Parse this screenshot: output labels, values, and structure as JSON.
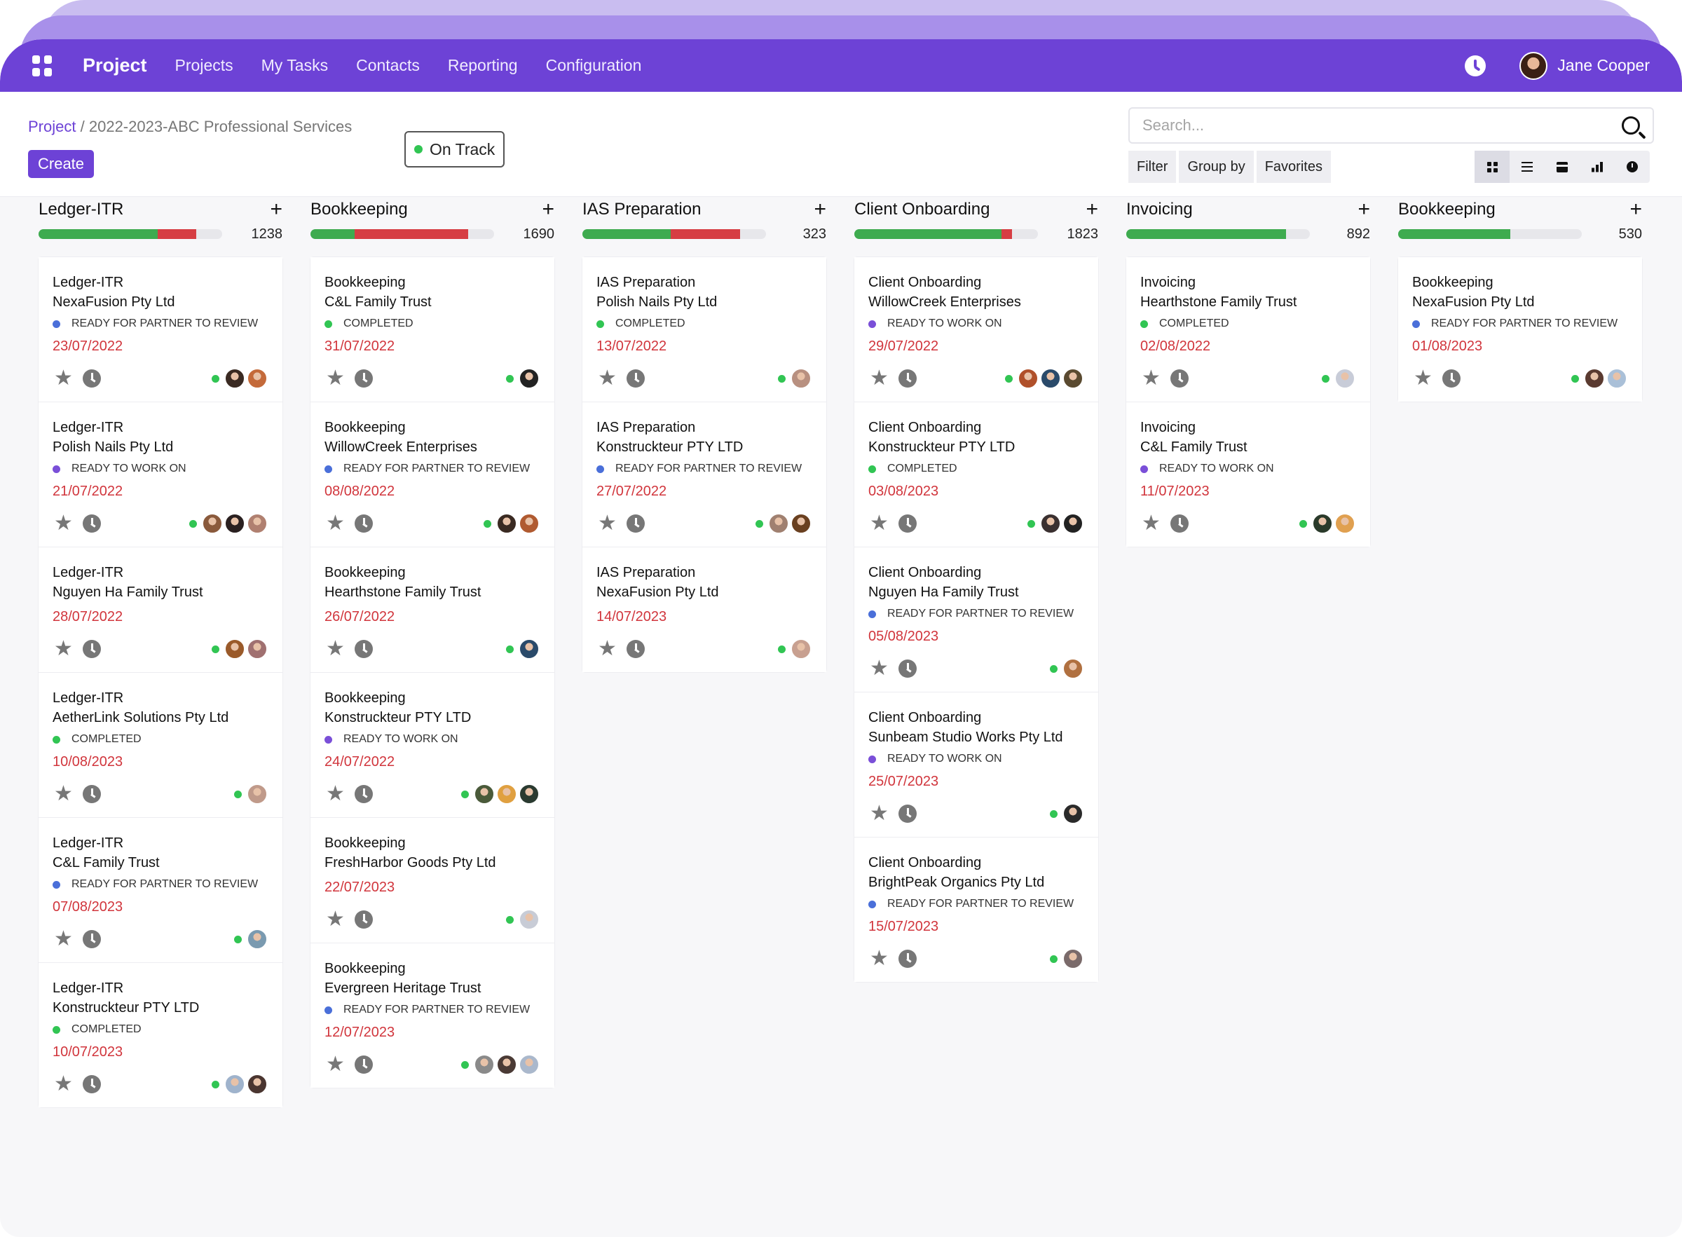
{
  "navbar": {
    "brand": "Project",
    "items": [
      "Projects",
      "My Tasks",
      "Contacts",
      "Reporting",
      "Configuration"
    ],
    "user_name": "Jane Cooper",
    "accent": "#6d42d6"
  },
  "breadcrumb": {
    "root": "Project",
    "separator": "/",
    "current": "2022-2023-ABC Professional Services"
  },
  "status_pill": {
    "label": "On Track",
    "color": "#31c553"
  },
  "create_label": "Create",
  "search": {
    "placeholder": "Search..."
  },
  "filters": {
    "filter": "Filter",
    "group_by": "Group by",
    "favorites": "Favorites"
  },
  "views": [
    "kanban-icon",
    "list-icon",
    "calendar-icon",
    "graph-icon",
    "activity-icon"
  ],
  "status_colors": {
    "READY FOR PARTNER TO REVIEW": "#4a6fd9",
    "COMPLETED": "#31c553",
    "READY TO WORK ON": "#7a4fd8"
  },
  "columns": [
    {
      "title": "Ledger-ITR",
      "count": "1238",
      "progress": {
        "ok": 0.65,
        "bad": 0.21
      },
      "cards": [
        {
          "type": "Ledger-ITR",
          "client": "NexaFusion Pty Ltd",
          "status": "READY FOR PARTNER TO REVIEW",
          "date": "23/07/2022",
          "avatars": [
            "#3a2a22",
            "#c46a3a"
          ]
        },
        {
          "type": "Ledger-ITR",
          "client": "Polish Nails Pty Ltd",
          "status": "READY TO WORK ON",
          "date": "21/07/2022",
          "avatars": [
            "#8a5a3c",
            "#2a2020",
            "#b08070"
          ]
        },
        {
          "type": "Ledger-ITR",
          "client": "Nguyen Ha Family Trust",
          "status": "",
          "date": "28/07/2022",
          "avatars": [
            "#9a5a2a",
            "#a07070"
          ]
        },
        {
          "type": "Ledger-ITR",
          "client": "AetherLink Solutions Pty Ltd",
          "status": "COMPLETED",
          "date": "10/08/2023",
          "avatars": [
            "#c09a8a"
          ]
        },
        {
          "type": "Ledger-ITR",
          "client": "C&L Family Trust",
          "status": "READY FOR PARTNER TO REVIEW",
          "date": "07/08/2023",
          "avatars": [
            "#7a9ab0"
          ]
        },
        {
          "type": "Ledger-ITR",
          "client": "Konstruckteur PTY LTD",
          "status": "COMPLETED",
          "date": "10/07/2023",
          "avatars": [
            "#9fb3cc",
            "#4a3530"
          ]
        }
      ]
    },
    {
      "title": "Bookkeeping",
      "count": "1690",
      "progress": {
        "ok": 0.24,
        "bad": 0.62
      },
      "cards": [
        {
          "type": "Bookkeeping",
          "client": "C&L Family Trust",
          "status": "COMPLETED",
          "date": "31/07/2022",
          "avatars": [
            "#222222"
          ]
        },
        {
          "type": "Bookkeeping",
          "client": "WillowCreek Enterprises",
          "status": "READY FOR PARTNER TO REVIEW",
          "date": "08/08/2022",
          "avatars": [
            "#3a2a22",
            "#b05a30"
          ]
        },
        {
          "type": "Bookkeeping",
          "client": "Hearthstone Family Trust",
          "status": "",
          "date": "26/07/2022",
          "avatars": [
            "#2a4a6a"
          ]
        },
        {
          "type": "Bookkeeping",
          "client": "Konstruckteur PTY LTD",
          "status": "READY TO WORK ON",
          "date": "24/07/2022",
          "avatars": [
            "#4a5a3a",
            "#e0a040",
            "#2a3a30"
          ]
        },
        {
          "type": "Bookkeeping",
          "client": "FreshHarbor Goods Pty Ltd",
          "status": "",
          "date": "22/07/2023",
          "avatars": [
            "#c8ccd6"
          ]
        },
        {
          "type": "Bookkeeping",
          "client": "Evergreen Heritage Trust",
          "status": "READY FOR PARTNER TO REVIEW",
          "date": "12/07/2023",
          "avatars": [
            "#8a8a8a",
            "#4a3a35",
            "#aab8cc"
          ]
        }
      ]
    },
    {
      "title": "IAS Preparation",
      "count": "323",
      "progress": {
        "ok": 0.48,
        "bad": 0.38
      },
      "cards": [
        {
          "type": "IAS Preparation",
          "client": "Polish Nails Pty Ltd",
          "status": "COMPLETED",
          "date": "13/07/2022",
          "avatars": [
            "#b89080"
          ]
        },
        {
          "type": "IAS Preparation",
          "client": "Konstruckteur PTY LTD",
          "status": "READY FOR PARTNER TO REVIEW",
          "date": "27/07/2022",
          "avatars": [
            "#a08070",
            "#6a4020"
          ]
        },
        {
          "type": "IAS Preparation",
          "client": "NexaFusion Pty Ltd",
          "status": "",
          "date": "14/07/2023",
          "avatars": [
            "#c8a090"
          ]
        }
      ]
    },
    {
      "title": "Client Onboarding",
      "count": "1823",
      "progress": {
        "ok": 0.8,
        "bad": 0.06
      },
      "cards": [
        {
          "type": "Client Onboarding",
          "client": "WillowCreek Enterprises",
          "status": "READY TO WORK ON",
          "date": "29/07/2022",
          "avatars": [
            "#b0502a",
            "#2a4a6a",
            "#5a4a30"
          ]
        },
        {
          "type": "Client Onboarding",
          "client": "Konstruckteur PTY LTD",
          "status": "COMPLETED",
          "date": "03/08/2023",
          "avatars": [
            "#3a3030",
            "#222222"
          ]
        },
        {
          "type": "Client Onboarding",
          "client": "Nguyen Ha Family Trust",
          "status": "READY FOR PARTNER TO REVIEW",
          "date": "05/08/2023",
          "avatars": [
            "#b07040"
          ]
        },
        {
          "type": "Client Onboarding",
          "client": "Sunbeam Studio Works Pty Ltd",
          "status": "READY TO WORK ON",
          "date": "25/07/2023",
          "avatars": [
            "#2a2a2a"
          ]
        },
        {
          "type": "Client Onboarding",
          "client": "BrightPeak Organics Pty Ltd",
          "status": "READY FOR PARTNER TO REVIEW",
          "date": "15/07/2023",
          "avatars": [
            "#7a6a6a"
          ]
        }
      ]
    },
    {
      "title": "Invoicing",
      "count": "892",
      "progress": {
        "ok": 0.87,
        "bad": 0
      },
      "cards": [
        {
          "type": "Invoicing",
          "client": "Hearthstone Family Trust",
          "status": "COMPLETED",
          "date": "02/08/2022",
          "avatars": [
            "#c8ccd8"
          ]
        },
        {
          "type": "Invoicing",
          "client": "C&L Family Trust",
          "status": "READY TO WORK ON",
          "date": "11/07/2023",
          "avatars": [
            "#2a3a2a",
            "#e0a050"
          ]
        }
      ]
    },
    {
      "title": "Bookkeeping",
      "count": "530",
      "progress": {
        "ok": 0.61,
        "bad": 0
      },
      "cards": [
        {
          "type": "Bookkeeping",
          "client": "NexaFusion Pty Ltd",
          "status": "READY FOR PARTNER TO REVIEW",
          "date": "01/08/2023",
          "avatars": [
            "#5a3a30",
            "#aac0d8"
          ]
        }
      ]
    }
  ]
}
